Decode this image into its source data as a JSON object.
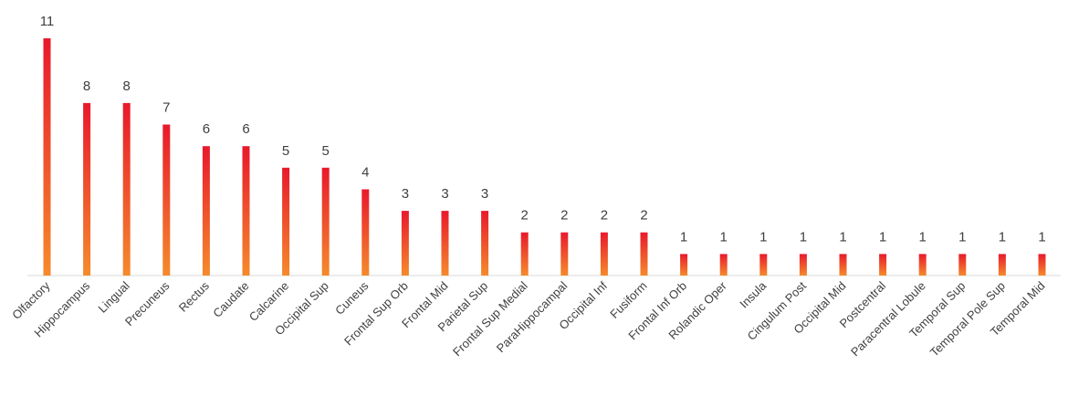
{
  "chart_data": {
    "type": "bar",
    "title": "",
    "xlabel": "",
    "ylabel": "",
    "ylim": [
      0,
      11
    ],
    "grid": false,
    "legend": "none",
    "categories": [
      "Olfactory",
      "Hippocampus",
      "Lingual",
      "Precuneus",
      "Rectus",
      "Caudate",
      "Calcarine",
      "Occipital Sup",
      "Cuneus",
      "Frontal Sup Orb",
      "Frontal Mid",
      "Parietal Sup",
      "Frontal Sup Medial",
      "ParaHippocampal",
      "Occipital Inf",
      "Fusiform",
      "Frontal Inf Orb",
      "Rolandic Oper",
      "Insula",
      "Cingulum Post",
      "Occipital Mid",
      "Postcentral",
      "Paracentral Lobule",
      "Temporal Sup",
      "Temporal Pole Sup",
      "Temporal Mid"
    ],
    "values": [
      11,
      8,
      8,
      7,
      6,
      6,
      5,
      5,
      4,
      3,
      3,
      3,
      2,
      2,
      2,
      2,
      1,
      1,
      1,
      1,
      1,
      1,
      1,
      1,
      1,
      1
    ],
    "value_labels": [
      "11",
      "8",
      "8",
      "7",
      "6",
      "6",
      "5",
      "5",
      "4",
      "3",
      "3",
      "3",
      "2",
      "2",
      "2",
      "2",
      "1",
      "1",
      "1",
      "1",
      "1",
      "1",
      "1",
      "1",
      "1",
      "1"
    ],
    "colors": {
      "bar_top": "#e8192c",
      "bar_bottom": "#f58a2c",
      "axis": "#d9d9d9",
      "text": "#404040"
    }
  }
}
